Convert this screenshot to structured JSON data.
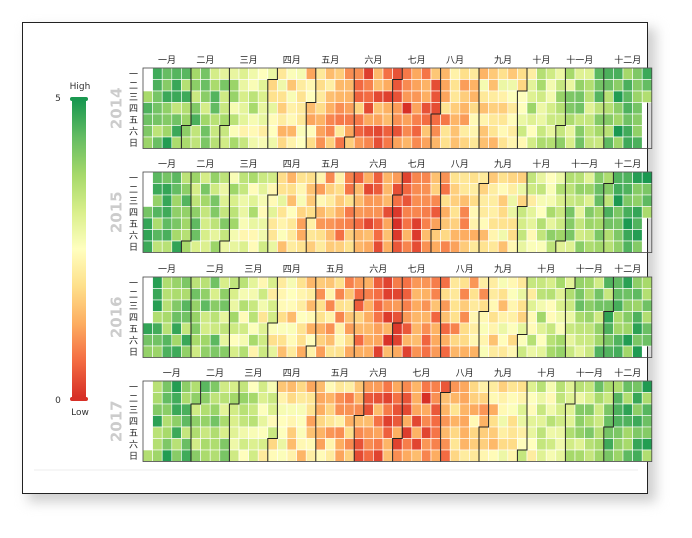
{
  "chart_data": {
    "type": "heatmap",
    "subtype": "calendar",
    "years": [
      {
        "year": "2014",
        "start_weekday": 2
      },
      {
        "year": "2015",
        "start_weekday": 3
      },
      {
        "year": "2016",
        "start_weekday": 4
      },
      {
        "year": "2017",
        "start_weekday": 6
      }
    ],
    "month_labels": [
      "一月",
      "二月",
      "三月",
      "四月",
      "五月",
      "六月",
      "七月",
      "八月",
      "九月",
      "十月",
      "十一月",
      "十二月"
    ],
    "day_labels": [
      "一",
      "二",
      "三",
      "四",
      "五",
      "六",
      "日"
    ],
    "monthly_level_estimate": [
      4.2,
      3.8,
      3.0,
      2.0,
      1.6,
      0.8,
      0.7,
      1.5,
      2.1,
      3.1,
      3.6,
      4.3
    ],
    "visual_map": {
      "min": 0,
      "max": 5,
      "min_label": "0",
      "max_label": "5",
      "high_text": "High",
      "low_text": "Low",
      "colors": [
        "#d73027",
        "#f46d43",
        "#fdae61",
        "#fee08b",
        "#ffffbf",
        "#d9ef8b",
        "#a6d96a",
        "#66bd63",
        "#1a9850"
      ]
    },
    "grid": false,
    "legend_position": "left"
  }
}
